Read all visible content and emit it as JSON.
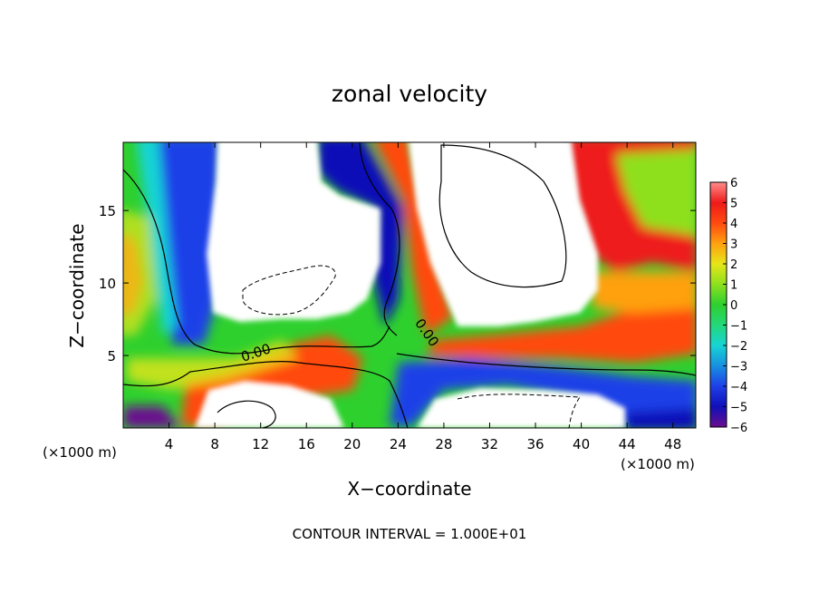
{
  "chart_data": {
    "type": "heatmap",
    "title": "zonal velocity",
    "xlabel": "X−coordinate",
    "ylabel": "Z−coordinate",
    "x_unit_left": "(×1000 m)",
    "x_unit_right": "(×1000 m)",
    "xlim": [
      0,
      50
    ],
    "ylim": [
      0,
      19.7
    ],
    "x_ticks": [
      4,
      8,
      12,
      16,
      20,
      24,
      28,
      32,
      36,
      40,
      44,
      48
    ],
    "y_ticks": [
      5,
      10,
      15
    ],
    "colorbar": {
      "min": -6,
      "max": 6,
      "ticks": [
        6,
        5,
        4,
        3,
        2,
        1,
        0,
        -1,
        -2,
        -3,
        -4,
        -5,
        -6
      ],
      "tick_labels": [
        "6",
        "5",
        "4",
        "3",
        "2",
        "1",
        "0",
        "−1",
        "−2",
        "−3",
        "−4",
        "−5",
        "−6"
      ],
      "colors": [
        "#6a0d8f",
        "#1010b8",
        "#1f3fe8",
        "#1790e0",
        "#17d4d4",
        "#23d87a",
        "#2ed02e",
        "#8ee01e",
        "#e6e619",
        "#ffa010",
        "#ff4a10",
        "#ee1a1a",
        "#ff8c8c"
      ]
    },
    "contour_labels": [
      "0.00",
      "0.00"
    ],
    "contour_interval_text": "CONTOUR INTERVAL = 1.000E+01"
  }
}
